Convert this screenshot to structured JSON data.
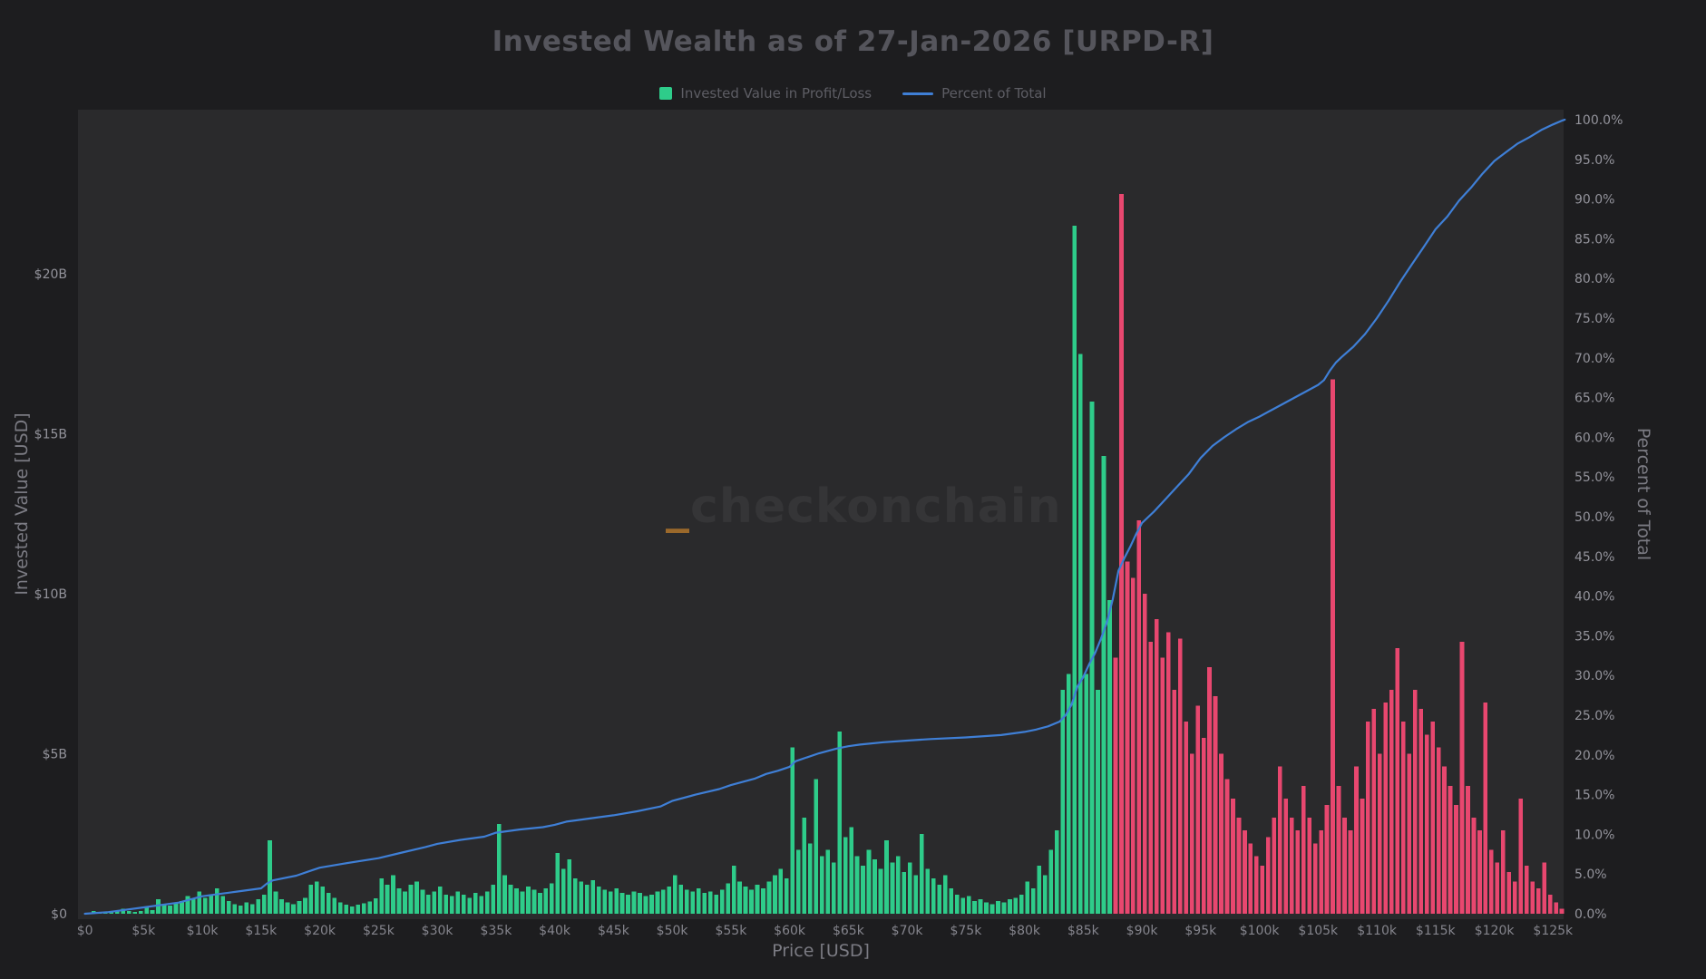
{
  "title": "Invested Wealth as of 27-Jan-2026 [URPD-R]",
  "watermark": {
    "prefix": "_",
    "text": "checkonchain"
  },
  "legend": {
    "position": "top-center",
    "items": [
      {
        "label": "Invested Value in Profit/Loss",
        "swatch": "square",
        "color": "#2ecc8a"
      },
      {
        "label": "Percent of Total",
        "swatch": "line",
        "color": "#3f7fd6"
      }
    ]
  },
  "axes": {
    "x": {
      "title": "Price [USD]",
      "ticks": [
        {
          "v": 0,
          "label": "$0"
        },
        {
          "v": 5,
          "label": "$5k"
        },
        {
          "v": 10,
          "label": "$10k"
        },
        {
          "v": 15,
          "label": "$15k"
        },
        {
          "v": 20,
          "label": "$20k"
        },
        {
          "v": 25,
          "label": "$25k"
        },
        {
          "v": 30,
          "label": "$30k"
        },
        {
          "v": 35,
          "label": "$35k"
        },
        {
          "v": 40,
          "label": "$40k"
        },
        {
          "v": 45,
          "label": "$45k"
        },
        {
          "v": 50,
          "label": "$50k"
        },
        {
          "v": 55,
          "label": "$55k"
        },
        {
          "v": 60,
          "label": "$60k"
        },
        {
          "v": 65,
          "label": "$65k"
        },
        {
          "v": 70,
          "label": "$70k"
        },
        {
          "v": 75,
          "label": "$75k"
        },
        {
          "v": 80,
          "label": "$80k"
        },
        {
          "v": 85,
          "label": "$85k"
        },
        {
          "v": 90,
          "label": "$90k"
        },
        {
          "v": 95,
          "label": "$95k"
        },
        {
          "v": 100,
          "label": "$100k"
        },
        {
          "v": 105,
          "label": "$105k"
        },
        {
          "v": 110,
          "label": "$110k"
        },
        {
          "v": 115,
          "label": "$115k"
        },
        {
          "v": 120,
          "label": "$120k"
        },
        {
          "v": 125,
          "label": "$125k"
        }
      ]
    },
    "y_left": {
      "title": "Invested Value [USD]",
      "ticks": [
        {
          "v": 0,
          "label": "$0"
        },
        {
          "v": 5,
          "label": "$5B"
        },
        {
          "v": 10,
          "label": "$10B"
        },
        {
          "v": 15,
          "label": "$15B"
        },
        {
          "v": 20,
          "label": "$20B"
        }
      ]
    },
    "y_right": {
      "title": "Percent of Total",
      "ticks": [
        {
          "v": 0,
          "label": "0.0%"
        },
        {
          "v": 5,
          "label": "5.0%"
        },
        {
          "v": 10,
          "label": "10.0%"
        },
        {
          "v": 15,
          "label": "15.0%"
        },
        {
          "v": 20,
          "label": "20.0%"
        },
        {
          "v": 25,
          "label": "25.0%"
        },
        {
          "v": 30,
          "label": "30.0%"
        },
        {
          "v": 35,
          "label": "35.0%"
        },
        {
          "v": 40,
          "label": "40.0%"
        },
        {
          "v": 45,
          "label": "45.0%"
        },
        {
          "v": 50,
          "label": "50.0%"
        },
        {
          "v": 55,
          "label": "55.0%"
        },
        {
          "v": 60,
          "label": "60.0%"
        },
        {
          "v": 65,
          "label": "65.0%"
        },
        {
          "v": 70,
          "label": "70.0%"
        },
        {
          "v": 75,
          "label": "75.0%"
        },
        {
          "v": 80,
          "label": "80.0%"
        },
        {
          "v": 85,
          "label": "85.0%"
        },
        {
          "v": 90,
          "label": "90.0%"
        },
        {
          "v": 95,
          "label": "95.0%"
        },
        {
          "v": 100,
          "label": "100.0%"
        }
      ]
    }
  },
  "chart_data": {
    "type": "bar+line",
    "title": "Invested Wealth as of 27-Jan-2026 [URPD-R]",
    "grid": false,
    "x_unit": "price in thousands of USD",
    "x_range_k": [
      0,
      126
    ],
    "y_left_range_b": [
      0,
      25.1
    ],
    "y_right_range_pct": [
      0,
      101.5
    ],
    "colors": {
      "profit": "#2ecc8a",
      "loss": "#e8476f",
      "line": "#3f7fd6"
    },
    "bar_series": {
      "name": "Invested Value in Profit/Loss",
      "unit": "USD billions",
      "bin_width_k": 0.5,
      "bin_start_k": 0,
      "current_price_k": 87.5,
      "values_b": [
        0.02,
        0.08,
        0.05,
        0.04,
        0.06,
        0.1,
        0.15,
        0.08,
        0.06,
        0.08,
        0.2,
        0.12,
        0.45,
        0.3,
        0.25,
        0.35,
        0.4,
        0.55,
        0.45,
        0.7,
        0.5,
        0.6,
        0.8,
        0.55,
        0.4,
        0.3,
        0.25,
        0.35,
        0.3,
        0.45,
        0.6,
        2.3,
        0.7,
        0.45,
        0.35,
        0.3,
        0.4,
        0.5,
        0.9,
        1.0,
        0.85,
        0.65,
        0.5,
        0.35,
        0.28,
        0.22,
        0.28,
        0.32,
        0.38,
        0.48,
        1.1,
        0.9,
        1.2,
        0.8,
        0.7,
        0.9,
        1.0,
        0.75,
        0.6,
        0.7,
        0.85,
        0.6,
        0.55,
        0.7,
        0.6,
        0.5,
        0.65,
        0.55,
        0.7,
        0.9,
        2.8,
        1.2,
        0.9,
        0.8,
        0.7,
        0.85,
        0.75,
        0.65,
        0.8,
        0.95,
        1.9,
        1.4,
        1.7,
        1.1,
        1.0,
        0.9,
        1.05,
        0.85,
        0.75,
        0.7,
        0.8,
        0.65,
        0.6,
        0.7,
        0.65,
        0.55,
        0.6,
        0.7,
        0.75,
        0.85,
        1.2,
        0.9,
        0.75,
        0.7,
        0.8,
        0.65,
        0.7,
        0.6,
        0.75,
        0.95,
        1.5,
        1.0,
        0.85,
        0.75,
        0.9,
        0.8,
        1.0,
        1.2,
        1.4,
        1.1,
        5.2,
        2.0,
        3.0,
        2.2,
        4.2,
        1.8,
        2.0,
        1.6,
        5.7,
        2.4,
        2.7,
        1.8,
        1.5,
        2.0,
        1.7,
        1.4,
        2.3,
        1.6,
        1.8,
        1.3,
        1.6,
        1.2,
        2.5,
        1.4,
        1.1,
        0.9,
        1.2,
        0.8,
        0.6,
        0.5,
        0.55,
        0.4,
        0.45,
        0.35,
        0.3,
        0.4,
        0.35,
        0.45,
        0.5,
        0.6,
        1.0,
        0.8,
        1.5,
        1.2,
        2.0,
        2.6,
        7.0,
        7.5,
        21.5,
        17.5,
        7.5,
        16.0,
        7.0,
        14.3,
        9.8,
        8.0,
        22.5,
        11.0,
        10.5,
        12.3,
        10.0,
        8.5,
        9.2,
        8.0,
        8.8,
        7.0,
        8.6,
        6.0,
        5.0,
        6.5,
        5.5,
        7.7,
        6.8,
        5.0,
        4.2,
        3.6,
        3.0,
        2.6,
        2.2,
        1.8,
        1.5,
        2.4,
        3.0,
        4.6,
        3.6,
        3.0,
        2.6,
        4.0,
        3.0,
        2.2,
        2.6,
        3.4,
        16.7,
        4.0,
        3.0,
        2.6,
        4.6,
        3.6,
        6.0,
        6.4,
        5.0,
        6.6,
        7.0,
        8.3,
        6.0,
        5.0,
        7.0,
        6.4,
        5.6,
        6.0,
        5.2,
        4.6,
        4.0,
        3.4,
        8.5,
        4.0,
        3.0,
        2.6,
        6.6,
        2.0,
        1.6,
        2.6,
        1.3,
        1.0,
        3.6,
        1.5,
        1.0,
        0.8,
        1.6,
        0.6,
        0.35,
        0.15
      ]
    },
    "line_series": {
      "name": "Percent of Total",
      "unit": "%",
      "points": [
        [
          0,
          0
        ],
        [
          2,
          0.2
        ],
        [
          5,
          0.8
        ],
        [
          8,
          1.4
        ],
        [
          10,
          2.2
        ],
        [
          13,
          2.8
        ],
        [
          15,
          3.2
        ],
        [
          15.5,
          3.8
        ],
        [
          16,
          4.2
        ],
        [
          18,
          4.8
        ],
        [
          19,
          5.3
        ],
        [
          20,
          5.8
        ],
        [
          22,
          6.3
        ],
        [
          25,
          7.0
        ],
        [
          27,
          7.7
        ],
        [
          29,
          8.4
        ],
        [
          30,
          8.8
        ],
        [
          32,
          9.3
        ],
        [
          34,
          9.7
        ],
        [
          35,
          10.2
        ],
        [
          37,
          10.6
        ],
        [
          39,
          10.9
        ],
        [
          40,
          11.2
        ],
        [
          41,
          11.6
        ],
        [
          43,
          12.0
        ],
        [
          45,
          12.4
        ],
        [
          47,
          12.9
        ],
        [
          49,
          13.5
        ],
        [
          50,
          14.2
        ],
        [
          52,
          15.0
        ],
        [
          54,
          15.7
        ],
        [
          55,
          16.2
        ],
        [
          57,
          17.0
        ],
        [
          58,
          17.6
        ],
        [
          59,
          18.0
        ],
        [
          60,
          18.5
        ],
        [
          60.5,
          19.2
        ],
        [
          61.5,
          19.7
        ],
        [
          62.5,
          20.2
        ],
        [
          64,
          20.8
        ],
        [
          65,
          21.1
        ],
        [
          66,
          21.3
        ],
        [
          68,
          21.6
        ],
        [
          70,
          21.8
        ],
        [
          72,
          22.0
        ],
        [
          75,
          22.2
        ],
        [
          78,
          22.5
        ],
        [
          80,
          22.9
        ],
        [
          81,
          23.2
        ],
        [
          82,
          23.6
        ],
        [
          83,
          24.2
        ],
        [
          83.5,
          25.0
        ],
        [
          84,
          26.3
        ],
        [
          84.5,
          28.6
        ],
        [
          85,
          29.8
        ],
        [
          85.5,
          31.4
        ],
        [
          86,
          32.8
        ],
        [
          86.5,
          34.6
        ],
        [
          87,
          36.6
        ],
        [
          87.5,
          39.5
        ],
        [
          88,
          43.2
        ],
        [
          88.5,
          44.8
        ],
        [
          89,
          46.2
        ],
        [
          89.5,
          47.8
        ],
        [
          90,
          49.2
        ],
        [
          91,
          50.6
        ],
        [
          92,
          52.2
        ],
        [
          93,
          53.8
        ],
        [
          94,
          55.4
        ],
        [
          95,
          57.4
        ],
        [
          96,
          58.9
        ],
        [
          97,
          60.0
        ],
        [
          98,
          61.0
        ],
        [
          99,
          61.9
        ],
        [
          100,
          62.6
        ],
        [
          101,
          63.4
        ],
        [
          102,
          64.2
        ],
        [
          103,
          65.0
        ],
        [
          104,
          65.8
        ],
        [
          105,
          66.6
        ],
        [
          105.5,
          67.2
        ],
        [
          106,
          68.4
        ],
        [
          106.5,
          69.4
        ],
        [
          107,
          70.1
        ],
        [
          108,
          71.4
        ],
        [
          109,
          73.0
        ],
        [
          110,
          75.0
        ],
        [
          111,
          77.2
        ],
        [
          112,
          79.6
        ],
        [
          113,
          81.8
        ],
        [
          114,
          84.0
        ],
        [
          115,
          86.2
        ],
        [
          116,
          87.8
        ],
        [
          117,
          89.8
        ],
        [
          117.5,
          90.6
        ],
        [
          118,
          91.4
        ],
        [
          119,
          93.2
        ],
        [
          120,
          94.8
        ],
        [
          121,
          95.9
        ],
        [
          122,
          97.0
        ],
        [
          123,
          97.8
        ],
        [
          124,
          98.7
        ],
        [
          125,
          99.4
        ],
        [
          125.8,
          99.9
        ],
        [
          126,
          100
        ]
      ]
    }
  }
}
